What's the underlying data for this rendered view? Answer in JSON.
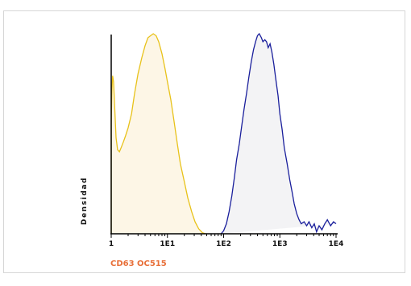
{
  "chart_data": {
    "type": "area",
    "x_scale": "log",
    "xlim": [
      1,
      10000
    ],
    "ylim": [
      0,
      1
    ],
    "xlabel": "CD63 OC515",
    "ylabel": "Densidad",
    "tick_labels": [
      "1",
      "1E1",
      "1E2",
      "1E3",
      "1E4"
    ],
    "tick_values": [
      1,
      10,
      100,
      1000,
      10000
    ],
    "grid": false,
    "colors": {
      "xlabel": "#e8703a",
      "axis": "#000000"
    },
    "series": [
      {
        "color": "#e8c21a",
        "fill": "#fdf6e6",
        "points": [
          [
            1.0,
            0.0
          ],
          [
            1.0,
            0.55
          ],
          [
            1.03,
            0.72
          ],
          [
            1.06,
            0.79
          ],
          [
            1.1,
            0.76
          ],
          [
            1.15,
            0.64
          ],
          [
            1.22,
            0.48
          ],
          [
            1.3,
            0.42
          ],
          [
            1.4,
            0.41
          ],
          [
            1.5,
            0.43
          ],
          [
            1.65,
            0.46
          ],
          [
            1.8,
            0.49
          ],
          [
            2.0,
            0.53
          ],
          [
            2.3,
            0.6
          ],
          [
            2.6,
            0.7
          ],
          [
            3.0,
            0.8
          ],
          [
            3.5,
            0.88
          ],
          [
            4.0,
            0.94
          ],
          [
            4.5,
            0.98
          ],
          [
            5.0,
            0.99
          ],
          [
            5.6,
            1.0
          ],
          [
            6.3,
            0.99
          ],
          [
            7.0,
            0.96
          ],
          [
            8.0,
            0.9
          ],
          [
            9.0,
            0.83
          ],
          [
            10.0,
            0.76
          ],
          [
            11.5,
            0.67
          ],
          [
            13.0,
            0.57
          ],
          [
            15.0,
            0.45
          ],
          [
            17.0,
            0.35
          ],
          [
            20.0,
            0.26
          ],
          [
            23.0,
            0.18
          ],
          [
            27.0,
            0.11
          ],
          [
            31.0,
            0.06
          ],
          [
            36.0,
            0.025
          ],
          [
            42.0,
            0.005
          ],
          [
            48.0,
            0.0
          ]
        ]
      },
      {
        "color": "#1a1f9c",
        "fill": "#f3f3f5",
        "points": [
          [
            90.0,
            0.0
          ],
          [
            100.0,
            0.015
          ],
          [
            112.0,
            0.05
          ],
          [
            125.0,
            0.11
          ],
          [
            140.0,
            0.19
          ],
          [
            155.0,
            0.28
          ],
          [
            170.0,
            0.37
          ],
          [
            190.0,
            0.45
          ],
          [
            210.0,
            0.54
          ],
          [
            230.0,
            0.62
          ],
          [
            255.0,
            0.7
          ],
          [
            280.0,
            0.78
          ],
          [
            310.0,
            0.86
          ],
          [
            340.0,
            0.92
          ],
          [
            370.0,
            0.96
          ],
          [
            400.0,
            0.99
          ],
          [
            430.0,
            1.0
          ],
          [
            470.0,
            0.98
          ],
          [
            500.0,
            0.96
          ],
          [
            540.0,
            0.97
          ],
          [
            580.0,
            0.96
          ],
          [
            620.0,
            0.93
          ],
          [
            670.0,
            0.95
          ],
          [
            720.0,
            0.91
          ],
          [
            780.0,
            0.85
          ],
          [
            850.0,
            0.77
          ],
          [
            930.0,
            0.69
          ],
          [
            1000.0,
            0.6
          ],
          [
            1100.0,
            0.52
          ],
          [
            1200.0,
            0.43
          ],
          [
            1350.0,
            0.35
          ],
          [
            1500.0,
            0.27
          ],
          [
            1650.0,
            0.21
          ],
          [
            1800.0,
            0.15
          ],
          [
            2000.0,
            0.1
          ],
          [
            2200.0,
            0.07
          ],
          [
            2400.0,
            0.05
          ],
          [
            2700.0,
            0.06
          ],
          [
            3000.0,
            0.04
          ],
          [
            3300.0,
            0.06
          ],
          [
            3700.0,
            0.03
          ],
          [
            4100.0,
            0.05
          ],
          [
            4500.0,
            0.01
          ],
          [
            5000.0,
            0.04
          ],
          [
            5600.0,
            0.02
          ],
          [
            6300.0,
            0.05
          ],
          [
            7000.0,
            0.07
          ],
          [
            8000.0,
            0.04
          ],
          [
            9000.0,
            0.06
          ],
          [
            10000.0,
            0.05
          ]
        ]
      }
    ]
  }
}
